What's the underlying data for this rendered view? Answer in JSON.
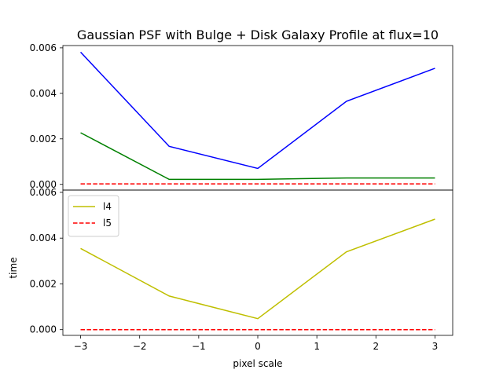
{
  "chart_data": {
    "type": "line",
    "title": "Gaussian PSF with Bulge + Disk Galaxy Profile at flux=10",
    "xlabel": "pixel scale",
    "ylabel": "time",
    "x": [
      -3,
      -1.5,
      0,
      1.5,
      3
    ],
    "x_ticks": [
      -3,
      -2,
      -1,
      0,
      1,
      2,
      3
    ],
    "x_tick_labels": [
      "−3",
      "−2",
      "−1",
      "0",
      "1",
      "2",
      "3"
    ],
    "xlim": [
      -3.3,
      3.3
    ],
    "grid": false,
    "panels": [
      {
        "ylim": [
          -0.00025,
          0.0061
        ],
        "y_ticks": [
          0.0,
          0.002,
          0.004,
          0.006
        ],
        "y_tick_labels": [
          "0.000",
          "0.002",
          "0.004",
          "0.006"
        ],
        "legend": null,
        "series": [
          {
            "color": "#0000ff",
            "style": "solid",
            "values": [
              0.00581,
              0.00167,
              0.0007,
              0.00365,
              0.0051
            ]
          },
          {
            "color": "#008000",
            "style": "solid",
            "values": [
              0.00227,
              0.00022,
              0.00022,
              0.00028,
              0.00028
            ]
          },
          {
            "color": "#ff0000",
            "style": "dashed",
            "values": [
              2e-05,
              2e-05,
              2e-05,
              2e-05,
              2e-05
            ]
          }
        ]
      },
      {
        "ylim": [
          -0.00025,
          0.0061
        ],
        "y_ticks": [
          0.0,
          0.002,
          0.004,
          0.006
        ],
        "y_tick_labels": [
          "0.000",
          "0.002",
          "0.004",
          "0.006"
        ],
        "legend": "upper left",
        "series": [
          {
            "name": "l4",
            "color": "#bfbf00",
            "style": "solid",
            "values": [
              0.00355,
              0.00147,
              0.00048,
              0.0034,
              0.00483
            ]
          },
          {
            "name": "l5",
            "color": "#ff0000",
            "style": "dashed",
            "values": [
              0.0,
              0.0,
              0.0,
              0.0,
              0.0
            ]
          }
        ]
      }
    ]
  }
}
